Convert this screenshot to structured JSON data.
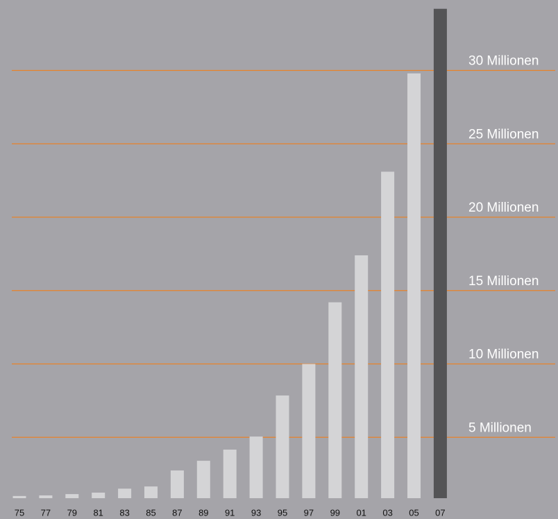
{
  "chart_data": {
    "type": "bar",
    "categories": [
      "75",
      "77",
      "79",
      "81",
      "83",
      "85",
      "87",
      "89",
      "91",
      "93",
      "95",
      "97",
      "99",
      "01",
      "03",
      "05",
      "07"
    ],
    "values": [
      1.0,
      1.04,
      1.13,
      1.23,
      1.5,
      1.65,
      2.74,
      3.4,
      4.16,
      5.05,
      7.85,
      10.0,
      14.2,
      17.4,
      23.1,
      29.8,
      34.2
    ],
    "colors": [
      "#d4d4d6",
      "#d4d4d6",
      "#d4d4d6",
      "#d4d4d6",
      "#d4d4d6",
      "#d4d4d6",
      "#d4d4d6",
      "#d4d4d6",
      "#d4d4d6",
      "#d4d4d6",
      "#d4d4d6",
      "#d4d4d6",
      "#d4d4d6",
      "#d4d4d6",
      "#d4d4d6",
      "#d4d4d6",
      "#545456"
    ],
    "ylim": [
      0,
      34.8
    ],
    "yticks": [
      {
        "value": 5,
        "label": "5 Millionen"
      },
      {
        "value": 10,
        "label": "10 Millionen"
      },
      {
        "value": 15,
        "label": "15 Millionen"
      },
      {
        "value": 20,
        "label": "20 Millionen"
      },
      {
        "value": 25,
        "label": "25 Millionen"
      },
      {
        "value": 30,
        "label": "30 Millionen"
      }
    ],
    "grid": true,
    "grid_color": "#e8822a"
  }
}
